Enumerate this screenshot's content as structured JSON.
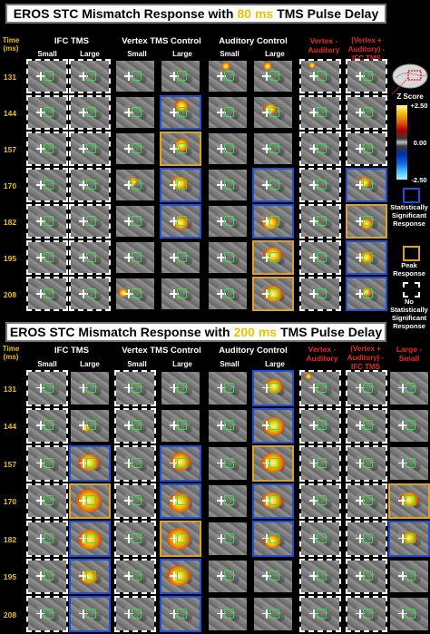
{
  "panel_top": {
    "title_prefix": "EROS STC Mismatch Response with",
    "delay": "80 ms",
    "title_suffix": "TMS Pulse Delay",
    "groups": [
      "IFC TMS",
      "Vertex TMS Control",
      "Auditory Control",
      "Vertex - Auditory",
      "(Vertex + Auditory) - IFC TMS"
    ],
    "subcols": [
      "Small",
      "Large",
      "Small",
      "Large",
      "Small",
      "Large"
    ],
    "times": [
      "131",
      "144",
      "157",
      "170",
      "182",
      "195",
      "208"
    ]
  },
  "panel_bottom": {
    "title_prefix": "EROS STC Mismatch Response with",
    "delay": "200 ms",
    "title_suffix": "TMS Pulse Delay",
    "groups": [
      "IFC TMS",
      "Vertex TMS Control",
      "Auditory Control",
      "Vertex - Auditory",
      "(Vertex + Auditory) - IFC TMS",
      "Large - Small"
    ],
    "subcols": [
      "Small",
      "Large",
      "Small",
      "Large",
      "Small",
      "Large"
    ],
    "times": [
      "131",
      "144",
      "157",
      "170",
      "182",
      "195",
      "208"
    ]
  },
  "time_header": "Time (ms)",
  "legend": {
    "zscore_label": "Z Score",
    "z_max": "+2.50",
    "z_mid": "0.00",
    "z_min": "-2.50",
    "sig_label": "Statistically Significant Response",
    "peak_label": "Peak Response",
    "nosig_label": "No Statistically Significant Response"
  },
  "colors": {
    "highlight": "#f0c000",
    "contrast": "#e8282a",
    "sig_box": "#1f4fd8",
    "peak_box": "#e0a020",
    "roi": "#2ee83a"
  }
}
